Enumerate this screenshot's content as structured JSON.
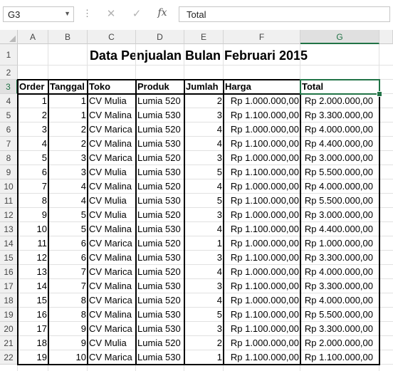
{
  "formula_bar": {
    "name_box": "G3",
    "formula": "Total"
  },
  "columns": [
    "A",
    "B",
    "C",
    "D",
    "E",
    "F",
    "G"
  ],
  "row_numbers": [
    "1",
    "2",
    "3",
    "4",
    "5",
    "6",
    "7",
    "8",
    "9",
    "10",
    "11",
    "12",
    "13",
    "14",
    "15",
    "16",
    "17",
    "18",
    "19",
    "20",
    "21",
    "22"
  ],
  "sheet": {
    "title": "Data Penjualan Bulan Februari 2015",
    "headers": [
      "Order",
      "Tanggal",
      "Toko",
      "Produk",
      "Jumlah",
      "Harga",
      "Total"
    ],
    "rows": [
      [
        "1",
        "1",
        "CV Mulia",
        "Lumia 520",
        "2",
        "Rp 1.000.000,00",
        "Rp 2.000.000,00"
      ],
      [
        "2",
        "1",
        "CV Malina",
        "Lumia 530",
        "3",
        "Rp 1.100.000,00",
        "Rp 3.300.000,00"
      ],
      [
        "3",
        "2",
        "CV Marica",
        "Lumia 520",
        "4",
        "Rp 1.000.000,00",
        "Rp 4.000.000,00"
      ],
      [
        "4",
        "2",
        "CV Malina",
        "Lumia 530",
        "4",
        "Rp 1.100.000,00",
        "Rp 4.400.000,00"
      ],
      [
        "5",
        "3",
        "CV Marica",
        "Lumia 520",
        "3",
        "Rp 1.000.000,00",
        "Rp 3.000.000,00"
      ],
      [
        "6",
        "3",
        "CV Mulia",
        "Lumia 530",
        "5",
        "Rp 1.100.000,00",
        "Rp 5.500.000,00"
      ],
      [
        "7",
        "4",
        "CV Malina",
        "Lumia 520",
        "4",
        "Rp 1.000.000,00",
        "Rp 4.000.000,00"
      ],
      [
        "8",
        "4",
        "CV Mulia",
        "Lumia 530",
        "5",
        "Rp 1.100.000,00",
        "Rp 5.500.000,00"
      ],
      [
        "9",
        "5",
        "CV Mulia",
        "Lumia 520",
        "3",
        "Rp 1.000.000,00",
        "Rp 3.000.000,00"
      ],
      [
        "10",
        "5",
        "CV Malina",
        "Lumia 530",
        "4",
        "Rp 1.100.000,00",
        "Rp 4.400.000,00"
      ],
      [
        "11",
        "6",
        "CV Marica",
        "Lumia 520",
        "1",
        "Rp 1.000.000,00",
        "Rp 1.000.000,00"
      ],
      [
        "12",
        "6",
        "CV Malina",
        "Lumia 530",
        "3",
        "Rp 1.100.000,00",
        "Rp 3.300.000,00"
      ],
      [
        "13",
        "7",
        "CV Marica",
        "Lumia 520",
        "4",
        "Rp 1.000.000,00",
        "Rp 4.000.000,00"
      ],
      [
        "14",
        "7",
        "CV Malina",
        "Lumia 530",
        "3",
        "Rp 1.100.000,00",
        "Rp 3.300.000,00"
      ],
      [
        "15",
        "8",
        "CV Marica",
        "Lumia 520",
        "4",
        "Rp 1.000.000,00",
        "Rp 4.000.000,00"
      ],
      [
        "16",
        "8",
        "CV Malina",
        "Lumia 530",
        "5",
        "Rp 1.100.000,00",
        "Rp 5.500.000,00"
      ],
      [
        "17",
        "9",
        "CV Marica",
        "Lumia 530",
        "3",
        "Rp 1.100.000,00",
        "Rp 3.300.000,00"
      ],
      [
        "18",
        "9",
        "CV Mulia",
        "Lumia 520",
        "2",
        "Rp 1.000.000,00",
        "Rp 2.000.000,00"
      ],
      [
        "19",
        "10",
        "CV Marica",
        "Lumia 530",
        "1",
        "Rp 1.100.000,00",
        "Rp 1.100.000,00"
      ]
    ]
  },
  "icons": {
    "name_box_dropdown": "chevron-down-icon",
    "cancel": "close-icon",
    "enter": "check-icon",
    "insert_function": "fx-icon"
  },
  "colors": {
    "selection": "#217346"
  }
}
